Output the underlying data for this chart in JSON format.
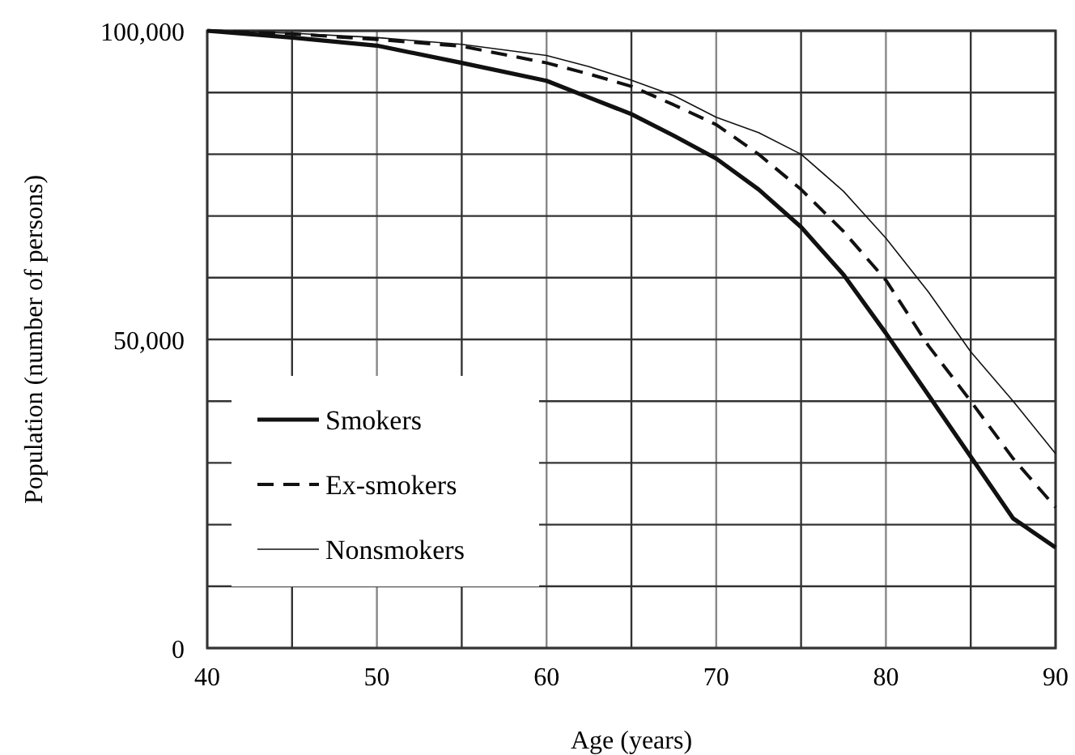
{
  "chart_data": {
    "type": "line",
    "xlabel": "Age (years)",
    "ylabel": "Population (number of persons)",
    "x": [
      40,
      45,
      50,
      55,
      60,
      62.5,
      65,
      67.5,
      70,
      72.5,
      75,
      77.5,
      80,
      82.5,
      85,
      87.5,
      90
    ],
    "series": [
      {
        "name": "Smokers",
        "color": "#111111",
        "line_style": "solid",
        "values": [
          100000,
          98900,
          97600,
          94800,
          91900,
          89200,
          86500,
          83000,
          79300,
          74300,
          68200,
          60500,
          51000,
          41000,
          31000,
          21000,
          16300
        ]
      },
      {
        "name": "Ex-smokers",
        "color": "#111111",
        "line_style": "dashed",
        "values": [
          100000,
          99500,
          98600,
          97500,
          94800,
          93000,
          91000,
          88000,
          84800,
          80000,
          74300,
          67500,
          59600,
          49000,
          40000,
          30700,
          22800
        ]
      },
      {
        "name": "Nonsmokers",
        "color": "#111111",
        "line_style": "solid",
        "values": [
          100000,
          99600,
          98900,
          97800,
          96000,
          94200,
          92000,
          89500,
          86000,
          83500,
          80000,
          74000,
          66400,
          57700,
          48000,
          40000,
          31500
        ]
      }
    ],
    "xlim": [
      40,
      90
    ],
    "xticks": [
      40,
      {
        "value": 45,
        "label": null
      },
      50,
      {
        "value": 55,
        "label": null
      },
      60,
      {
        "value": 65,
        "label": null
      },
      70,
      {
        "value": 75,
        "label": null
      },
      80,
      {
        "value": 85,
        "label": null
      },
      90
    ],
    "ylim": [
      0,
      100000
    ],
    "yticks": [
      {
        "value": 0,
        "label": "0"
      },
      {
        "value": 10000,
        "label": null
      },
      {
        "value": 20000,
        "label": null
      },
      {
        "value": 30000,
        "label": null
      },
      {
        "value": 40000,
        "label": null
      },
      {
        "value": 50000,
        "label": "50,000"
      },
      {
        "value": 60000,
        "label": null
      },
      {
        "value": 70000,
        "label": null
      },
      {
        "value": 80000,
        "label": null
      },
      {
        "value": 90000,
        "label": null
      },
      {
        "value": 100000,
        "label": "100,000"
      }
    ],
    "grid": true,
    "legend": "bottom left"
  }
}
